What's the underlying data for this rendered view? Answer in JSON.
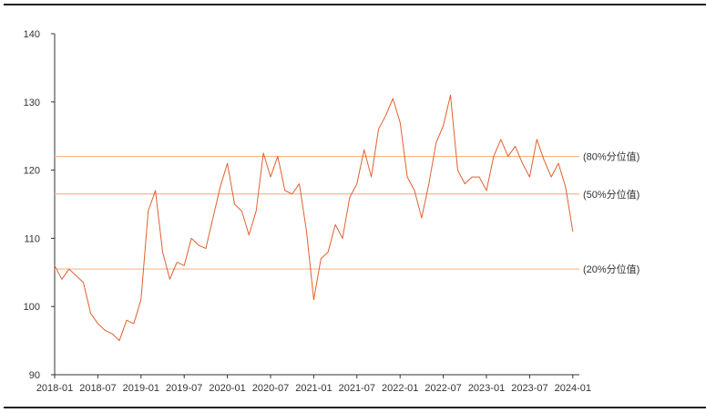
{
  "chart_data": {
    "type": "line",
    "title": "",
    "xlabel": "",
    "ylabel": "",
    "ylim": [
      90,
      140
    ],
    "y_ticks": [
      90,
      100,
      110,
      120,
      130,
      140
    ],
    "x_tick_labels": [
      "2018-01",
      "2018-07",
      "2019-01",
      "2019-07",
      "2020-01",
      "2020-07",
      "2021-01",
      "2021-07",
      "2022-01",
      "2022-07",
      "2023-01",
      "2023-07",
      "2024-01"
    ],
    "grid": false,
    "colors": {
      "line": "#e0612f",
      "reference": "#f5b98f",
      "axis": "#333333"
    },
    "reference_lines": [
      {
        "label": "(80%分位值)",
        "value": 122.0
      },
      {
        "label": "(50%分位值)",
        "value": 116.5
      },
      {
        "label": "(20%分位值)",
        "value": 105.5
      }
    ],
    "series": [
      {
        "x": [
          "2018-01",
          "2018-02",
          "2018-03",
          "2018-04",
          "2018-05",
          "2018-06",
          "2018-07",
          "2018-08",
          "2018-09",
          "2018-10",
          "2018-11",
          "2018-12",
          "2019-01",
          "2019-02",
          "2019-03",
          "2019-04",
          "2019-05",
          "2019-06",
          "2019-07",
          "2019-08",
          "2019-09",
          "2019-10",
          "2019-11",
          "2019-12",
          "2020-01",
          "2020-02",
          "2020-03",
          "2020-04",
          "2020-05",
          "2020-06",
          "2020-07",
          "2020-08",
          "2020-09",
          "2020-10",
          "2020-11",
          "2020-12",
          "2021-01",
          "2021-02",
          "2021-03",
          "2021-04",
          "2021-05",
          "2021-06",
          "2021-07",
          "2021-08",
          "2021-09",
          "2021-10",
          "2021-11",
          "2021-12",
          "2022-01",
          "2022-02",
          "2022-03",
          "2022-04",
          "2022-05",
          "2022-06",
          "2022-07",
          "2022-08",
          "2022-09",
          "2022-10",
          "2022-11",
          "2022-12",
          "2023-01",
          "2023-02",
          "2023-03",
          "2023-04",
          "2023-05",
          "2023-06",
          "2023-07",
          "2023-08",
          "2023-09",
          "2023-10",
          "2023-11",
          "2023-12",
          "2024-01"
        ],
        "values": [
          106,
          104,
          105.5,
          104.5,
          103.5,
          99,
          97.5,
          96.5,
          96,
          95,
          98,
          97.5,
          101,
          114,
          117,
          108,
          104,
          106.5,
          106,
          110,
          109,
          108.5,
          113,
          117.5,
          121,
          115,
          114,
          110.5,
          114,
          122.5,
          119,
          122,
          117,
          116.5,
          118,
          111,
          101,
          107,
          108,
          112,
          110,
          116,
          118,
          123,
          119,
          126,
          128,
          130.5,
          127,
          119,
          117,
          113,
          118,
          124,
          126.5,
          131,
          120,
          118,
          119,
          119,
          117,
          122,
          124.5,
          122,
          123.5,
          121,
          119,
          124.5,
          121.5,
          119,
          121,
          117.5,
          111
        ]
      }
    ]
  }
}
